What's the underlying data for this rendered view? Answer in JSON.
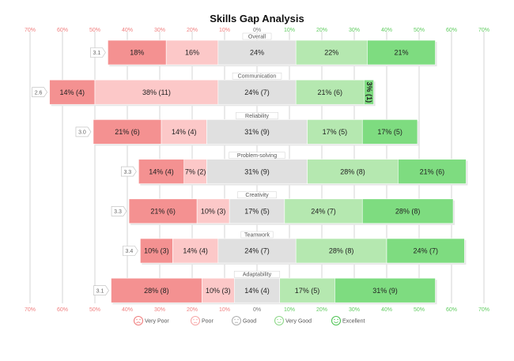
{
  "chart_data": {
    "type": "bar",
    "subtype": "diverging-stacked-likert",
    "title": "Skills Gap Analysis",
    "xlim": [
      -70,
      70
    ],
    "ticks": [
      -70,
      -60,
      -50,
      -40,
      -30,
      -20,
      -10,
      0,
      10,
      20,
      30,
      40,
      50,
      60,
      70
    ],
    "tick_labels": [
      "70%",
      "60%",
      "50%",
      "40%",
      "30%",
      "20%",
      "10%",
      "0%",
      "10%",
      "20%",
      "30%",
      "40%",
      "50%",
      "60%",
      "70%"
    ],
    "neutral_level": "Good",
    "legend_position": "bottom",
    "series": [
      {
        "name": "Very Poor",
        "color": "#f49191",
        "light": "#fbe1e1"
      },
      {
        "name": "Poor",
        "color": "#fcc8c8",
        "light": "#fdeeee"
      },
      {
        "name": "Good",
        "color": "#e0e0e0",
        "light": "#f2f2f2"
      },
      {
        "name": "Very Good",
        "color": "#b5e8b0",
        "light": "#e8f7e6"
      },
      {
        "name": "Excellent",
        "color": "#7edc80",
        "light": "#dff5df"
      }
    ],
    "categories": [
      {
        "name": "Overall",
        "average": "3.1",
        "values": [
          18,
          16,
          24,
          22,
          21
        ],
        "labels": [
          "18%",
          "16%",
          "24%",
          "22%",
          "21%"
        ]
      },
      {
        "name": "Communication",
        "average": "2.6",
        "values": [
          14,
          38,
          24,
          21,
          3
        ],
        "labels": [
          "14% (4)",
          "38% (11)",
          "24% (7)",
          "21% (6)",
          "3% (1)"
        ]
      },
      {
        "name": "Reliability",
        "average": "3.0",
        "values": [
          21,
          14,
          31,
          17,
          17
        ],
        "labels": [
          "21% (6)",
          "14% (4)",
          "31% (9)",
          "17% (5)",
          "17% (5)"
        ]
      },
      {
        "name": "Problem-solving",
        "average": "3.3",
        "values": [
          14,
          7,
          31,
          28,
          21
        ],
        "labels": [
          "14% (4)",
          "7% (2)",
          "31% (9)",
          "28% (8)",
          "21% (6)"
        ]
      },
      {
        "name": "Creativity",
        "average": "3.3",
        "values": [
          21,
          10,
          17,
          24,
          28
        ],
        "labels": [
          "21% (6)",
          "10% (3)",
          "17% (5)",
          "24% (7)",
          "28% (8)"
        ]
      },
      {
        "name": "Teamwork",
        "average": "3.4",
        "values": [
          10,
          14,
          24,
          28,
          24
        ],
        "labels": [
          "10% (3)",
          "14% (4)",
          "24% (7)",
          "28% (8)",
          "24% (7)"
        ]
      },
      {
        "name": "Adaptability",
        "average": "3.1",
        "values": [
          28,
          10,
          14,
          17,
          31
        ],
        "labels": [
          "28% (8)",
          "10% (3)",
          "14% (4)",
          "17% (5)",
          "31% (9)"
        ]
      }
    ]
  }
}
